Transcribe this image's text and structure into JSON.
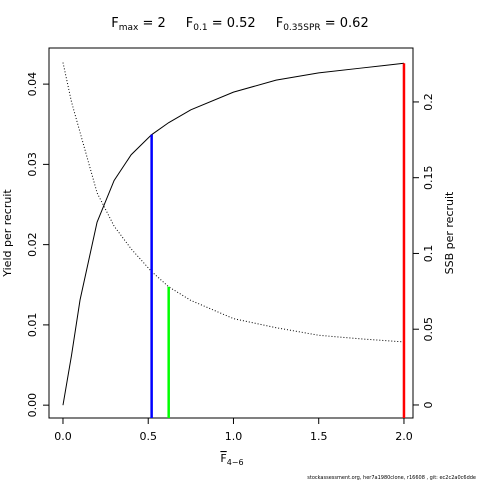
{
  "chart_data": {
    "type": "line",
    "title": [
      {
        "main": "F",
        "sub": "max",
        "rest": " = 2"
      },
      {
        "main": "F",
        "sub": "0.1",
        "rest": " = 0.52"
      },
      {
        "main": "F",
        "sub": "0.35SPR",
        "rest": " = 0.62"
      }
    ],
    "xlabel": {
      "main": "F",
      "sub": "4−6"
    },
    "ylabel": "Yield per recruit",
    "y2label": "SSB per recruit",
    "footer": "stockassessment.org, her7a1980clone, r16608 , git: ec2c2a0c6dde",
    "x": [
      0,
      0.05,
      0.1,
      0.2,
      0.3,
      0.4,
      0.52,
      0.62,
      0.75,
      1.0,
      1.25,
      1.5,
      1.75,
      2.0
    ],
    "series": [
      {
        "color": "#000000",
        "dash": false,
        "axis": "y",
        "values": [
          0,
          0.0062,
          0.0131,
          0.0228,
          0.028,
          0.0312,
          0.0337,
          0.0352,
          0.0368,
          0.039,
          0.0405,
          0.0414,
          0.042,
          0.0426
        ]
      },
      {
        "color": "#000000",
        "dash": true,
        "axis": "y2",
        "values": [
          0.226,
          0.2,
          0.18,
          0.14,
          0.118,
          0.103,
          0.088,
          0.078,
          0.069,
          0.057,
          0.051,
          0.046,
          0.0436,
          0.0416
        ]
      }
    ],
    "reference_lines": [
      {
        "x": 0.52,
        "y": 0.0337,
        "axis": "y",
        "color": "#0000ff"
      },
      {
        "x": 0.62,
        "y": 0.078,
        "axis": "y2",
        "color": "#00ff00"
      },
      {
        "x": 2.0,
        "y": 0.0426,
        "axis": "y",
        "color": "#ff0000"
      }
    ],
    "xlim": [
      -0.082,
      2.053
    ],
    "ylim": [
      -0.0016,
      0.0445
    ],
    "y2lim": [
      -0.0086,
      0.2356
    ],
    "xticks": [
      {
        "value": 0,
        "label": "0.0"
      },
      0.5,
      {
        "value": 1,
        "label": "1.0"
      },
      1.5,
      {
        "value": 2,
        "label": "2.0"
      }
    ],
    "yticks": [
      {
        "value": 0,
        "label": "0.00"
      },
      0.01,
      0.02,
      0.03,
      {
        "value": 0.04,
        "label": "0.04"
      }
    ],
    "y2ticks": [
      0,
      0.05,
      0.1,
      0.15,
      0.2
    ]
  }
}
